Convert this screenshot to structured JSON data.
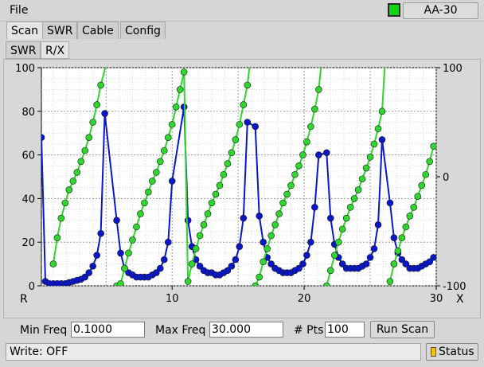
{
  "menu": {
    "file": "File"
  },
  "device": {
    "name": "AA-30",
    "connected_color": "#12d412"
  },
  "tabs": [
    {
      "label": "Scan",
      "active": true
    },
    {
      "label": "SWR"
    },
    {
      "label": "Cable"
    },
    {
      "label": "Config"
    }
  ],
  "subtabs": [
    {
      "label": "SWR"
    },
    {
      "label": "R/X",
      "active": true
    }
  ],
  "controls": {
    "min_freq_label": "Min Freq",
    "min_freq_value": "0.1000",
    "max_freq_label": "Max Freq",
    "max_freq_value": "30.000",
    "pts_label": "# Pts",
    "pts_value": "100",
    "run_label": "Run Scan"
  },
  "status": {
    "text": "Write: OFF",
    "button_label": "Status",
    "led_color": "#f0c400"
  },
  "chart_data": {
    "type": "line",
    "x_label": "R",
    "x2_label": "X",
    "xlim": [
      0.1,
      30
    ],
    "x_ticks": [
      10,
      20,
      30
    ],
    "ylim": [
      0,
      100
    ],
    "y_ticks": [
      0,
      20,
      40,
      60,
      80,
      100
    ],
    "y2lim": [
      -100,
      100
    ],
    "y2_ticks": [
      -100,
      0,
      100
    ],
    "grid": true,
    "series": [
      {
        "color": "#0a17c8",
        "axis": "left",
        "points": [
          [
            0.1,
            68
          ],
          [
            0.4,
            2
          ],
          [
            0.7,
            1
          ],
          [
            1.0,
            1
          ],
          [
            1.3,
            1
          ],
          [
            1.6,
            1
          ],
          [
            1.9,
            1
          ],
          [
            2.2,
            1.5
          ],
          [
            2.5,
            2
          ],
          [
            2.8,
            2.5
          ],
          [
            3.1,
            3
          ],
          [
            3.4,
            4
          ],
          [
            3.7,
            6
          ],
          [
            4.0,
            9
          ],
          [
            4.3,
            14
          ],
          [
            4.6,
            24
          ],
          [
            4.9,
            79
          ],
          [
            5.8,
            30
          ],
          [
            6.1,
            15
          ],
          [
            6.4,
            8
          ],
          [
            6.7,
            6
          ],
          [
            7.0,
            5
          ],
          [
            7.3,
            4
          ],
          [
            7.6,
            4
          ],
          [
            7.9,
            4
          ],
          [
            8.2,
            4
          ],
          [
            8.5,
            5
          ],
          [
            8.8,
            6
          ],
          [
            9.1,
            8
          ],
          [
            9.4,
            12
          ],
          [
            9.7,
            20
          ],
          [
            10.0,
            48
          ],
          [
            10.9,
            82
          ],
          [
            11.2,
            30
          ],
          [
            11.5,
            18
          ],
          [
            11.8,
            12
          ],
          [
            12.1,
            9
          ],
          [
            12.4,
            7
          ],
          [
            12.7,
            6
          ],
          [
            13.0,
            6
          ],
          [
            13.3,
            5
          ],
          [
            13.6,
            5
          ],
          [
            13.9,
            6
          ],
          [
            14.2,
            7
          ],
          [
            14.5,
            9
          ],
          [
            14.8,
            12
          ],
          [
            15.1,
            18
          ],
          [
            15.4,
            31
          ],
          [
            15.7,
            75
          ],
          [
            16.3,
            73
          ],
          [
            16.6,
            32
          ],
          [
            16.9,
            20
          ],
          [
            17.2,
            13
          ],
          [
            17.5,
            10
          ],
          [
            17.8,
            8
          ],
          [
            18.1,
            7
          ],
          [
            18.4,
            6
          ],
          [
            18.7,
            6
          ],
          [
            19.0,
            6
          ],
          [
            19.3,
            7
          ],
          [
            19.6,
            8
          ],
          [
            19.9,
            10
          ],
          [
            20.2,
            14
          ],
          [
            20.5,
            20
          ],
          [
            20.8,
            36
          ],
          [
            21.1,
            60
          ],
          [
            21.7,
            61
          ],
          [
            22.0,
            31
          ],
          [
            22.3,
            19
          ],
          [
            22.6,
            13
          ],
          [
            22.9,
            10
          ],
          [
            23.2,
            8
          ],
          [
            23.5,
            8
          ],
          [
            23.8,
            8
          ],
          [
            24.1,
            8
          ],
          [
            24.4,
            9
          ],
          [
            24.7,
            10
          ],
          [
            25.0,
            13
          ],
          [
            25.3,
            17
          ],
          [
            25.6,
            28
          ],
          [
            25.9,
            67
          ],
          [
            26.5,
            38
          ],
          [
            26.8,
            22
          ],
          [
            27.1,
            15
          ],
          [
            27.4,
            12
          ],
          [
            27.7,
            10
          ],
          [
            28.0,
            8
          ],
          [
            28.3,
            8
          ],
          [
            28.6,
            8
          ],
          [
            28.9,
            9
          ],
          [
            29.2,
            10
          ],
          [
            29.5,
            11
          ],
          [
            29.8,
            13
          ]
        ]
      },
      {
        "color": "#2ed62e",
        "axis": "left",
        "points": [
          [
            1.0,
            10
          ],
          [
            1.3,
            22
          ],
          [
            1.6,
            31
          ],
          [
            1.9,
            38
          ],
          [
            2.2,
            44
          ],
          [
            2.5,
            48
          ],
          [
            2.8,
            52
          ],
          [
            3.1,
            57
          ],
          [
            3.4,
            62
          ],
          [
            3.7,
            68
          ],
          [
            4.0,
            75
          ],
          [
            4.3,
            83
          ],
          [
            4.6,
            92
          ],
          [
            5.8,
            0
          ],
          [
            6.1,
            1
          ],
          [
            6.4,
            8
          ],
          [
            6.7,
            15
          ],
          [
            7.0,
            21
          ],
          [
            7.3,
            27
          ],
          [
            7.6,
            33
          ],
          [
            7.9,
            38
          ],
          [
            8.2,
            43
          ],
          [
            8.5,
            48
          ],
          [
            8.8,
            52
          ],
          [
            9.1,
            57
          ],
          [
            9.4,
            62
          ],
          [
            9.7,
            68
          ],
          [
            10.0,
            74
          ],
          [
            10.3,
            82
          ],
          [
            10.6,
            90
          ],
          [
            10.9,
            98
          ],
          [
            11.2,
            2
          ],
          [
            11.5,
            10
          ],
          [
            11.8,
            17
          ],
          [
            12.1,
            23
          ],
          [
            12.4,
            28
          ],
          [
            12.7,
            33
          ],
          [
            13.0,
            38
          ],
          [
            13.3,
            42
          ],
          [
            13.6,
            46
          ],
          [
            13.9,
            51
          ],
          [
            14.2,
            56
          ],
          [
            14.5,
            61
          ],
          [
            14.8,
            67
          ],
          [
            15.1,
            74
          ],
          [
            15.4,
            83
          ],
          [
            15.7,
            92
          ],
          [
            16.3,
            0
          ],
          [
            16.6,
            4
          ],
          [
            16.9,
            11
          ],
          [
            17.2,
            17
          ],
          [
            17.5,
            23
          ],
          [
            17.8,
            28
          ],
          [
            18.1,
            33
          ],
          [
            18.4,
            38
          ],
          [
            18.7,
            42
          ],
          [
            19.0,
            46
          ],
          [
            19.3,
            51
          ],
          [
            19.6,
            55
          ],
          [
            19.9,
            60
          ],
          [
            20.2,
            66
          ],
          [
            20.5,
            73
          ],
          [
            20.8,
            81
          ],
          [
            21.1,
            90
          ],
          [
            21.7,
            0
          ],
          [
            22.0,
            7
          ],
          [
            22.3,
            14
          ],
          [
            22.6,
            20
          ],
          [
            22.9,
            26
          ],
          [
            23.2,
            31
          ],
          [
            23.5,
            36
          ],
          [
            23.8,
            40
          ],
          [
            24.1,
            44
          ],
          [
            24.4,
            49
          ],
          [
            24.7,
            54
          ],
          [
            25.0,
            59
          ],
          [
            25.3,
            65
          ],
          [
            25.6,
            72
          ],
          [
            25.9,
            80
          ],
          [
            26.5,
            2
          ],
          [
            26.8,
            10
          ],
          [
            27.1,
            16
          ],
          [
            27.4,
            22
          ],
          [
            27.7,
            27
          ],
          [
            28.0,
            32
          ],
          [
            28.3,
            36
          ],
          [
            28.6,
            41
          ],
          [
            28.9,
            46
          ],
          [
            29.2,
            51
          ],
          [
            29.5,
            57
          ],
          [
            29.8,
            64
          ]
        ]
      }
    ]
  }
}
